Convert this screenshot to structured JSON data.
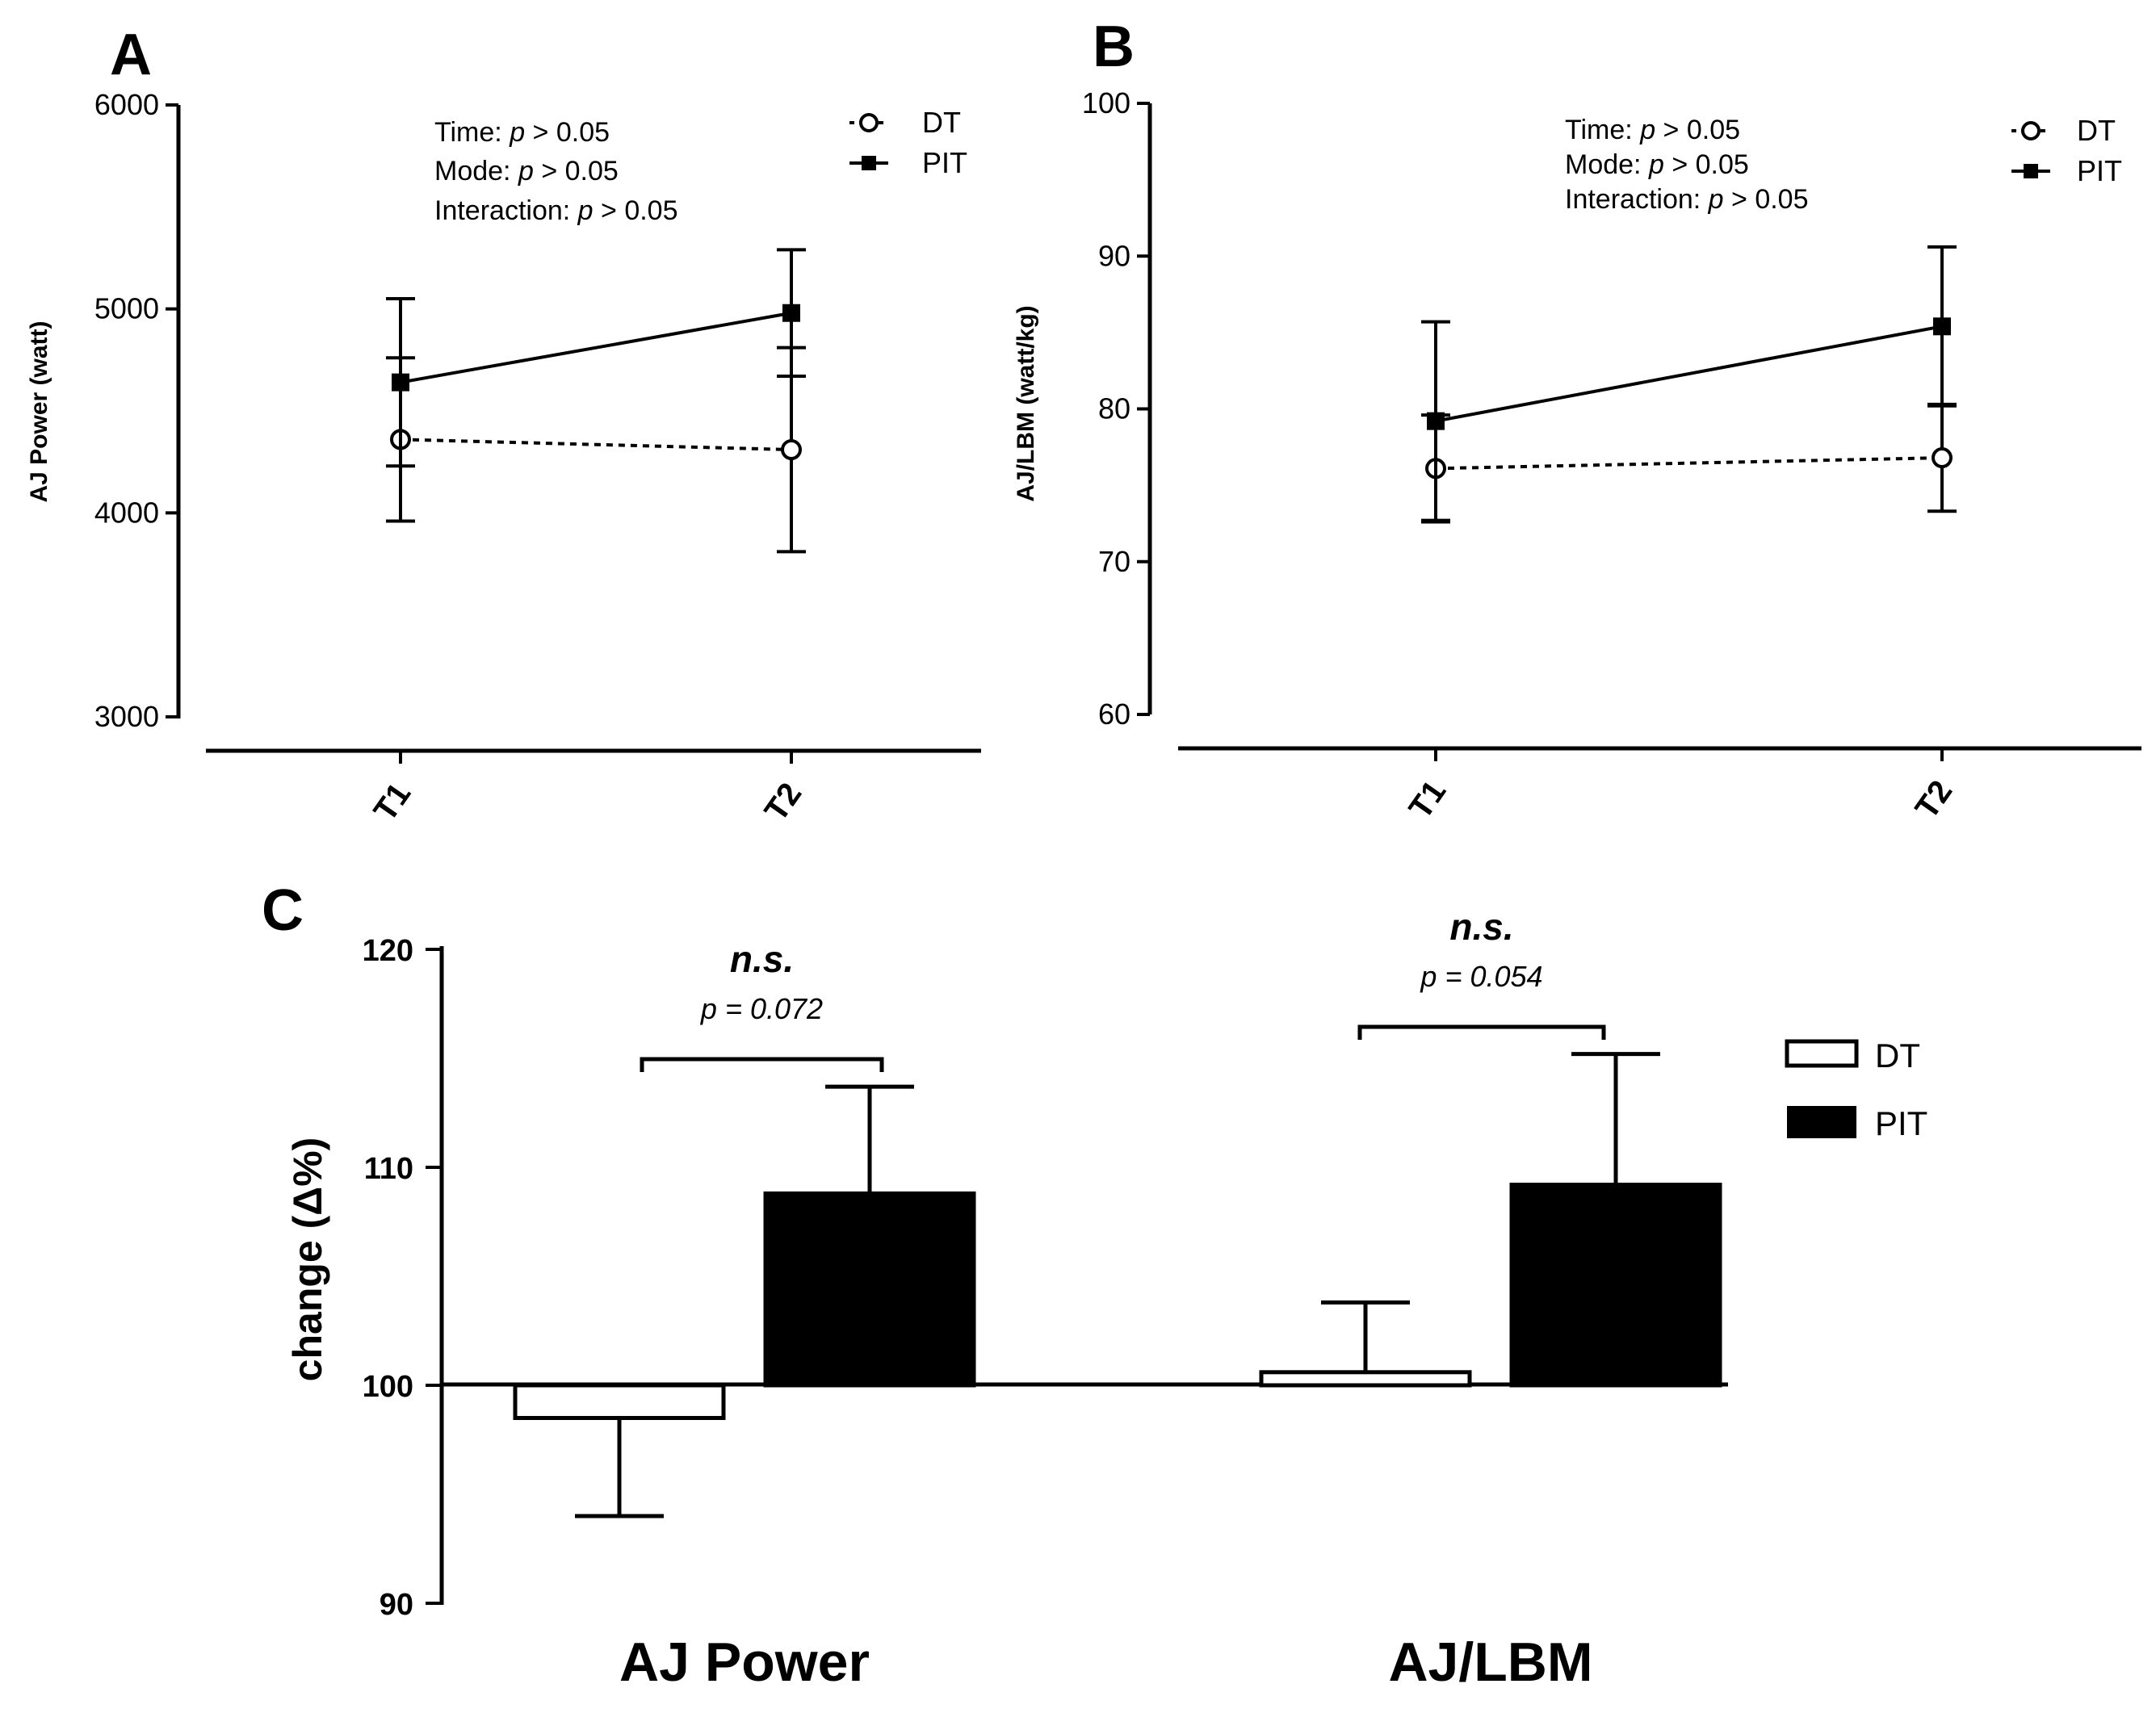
{
  "chart_data": [
    {
      "panel": "A",
      "type": "line",
      "ylabel": "AJ Power (watt)",
      "xlabel": "",
      "categories": [
        "T1",
        "T2"
      ],
      "ylim": [
        3000,
        6000
      ],
      "yticks": [
        3000,
        4000,
        5000,
        6000
      ],
      "series": [
        {
          "name": "DT",
          "marker": "open-circle",
          "line": "dashed",
          "values": [
            4360,
            4310
          ],
          "errors": [
            400,
            500
          ]
        },
        {
          "name": "PIT",
          "marker": "filled-square",
          "line": "solid",
          "values": [
            4640,
            4980
          ],
          "errors": [
            410,
            310
          ]
        }
      ],
      "annotations": [
        {
          "label": "Time: ",
          "p": "p",
          "rest": " > 0.05"
        },
        {
          "label": "Mode: ",
          "p": "p",
          "rest": " > 0.05"
        },
        {
          "label": "Interaction: ",
          "p": "p",
          "rest": " > 0.05"
        }
      ],
      "legend": [
        "DT",
        "PIT"
      ],
      "legend_position": "top-right"
    },
    {
      "panel": "B",
      "type": "line",
      "ylabel": "AJ/LBM (watt/kg)",
      "xlabel": "",
      "categories": [
        "T1",
        "T2"
      ],
      "ylim": [
        60,
        100
      ],
      "yticks": [
        60,
        70,
        80,
        90,
        100
      ],
      "series": [
        {
          "name": "DT",
          "marker": "open-circle",
          "line": "dashed",
          "values": [
            76.1,
            76.8
          ],
          "errors": [
            3.5,
            3.5
          ]
        },
        {
          "name": "PIT",
          "marker": "filled-square",
          "line": "solid",
          "values": [
            79.2,
            85.4
          ],
          "errors": [
            6.5,
            5.2
          ]
        }
      ],
      "annotations": [
        {
          "label": "Time: ",
          "p": "p",
          "rest": " > 0.05"
        },
        {
          "label": "Mode: ",
          "p": "p",
          "rest": " > 0.05"
        },
        {
          "label": "Interaction: ",
          "p": "p",
          "rest": " > 0.05"
        }
      ],
      "legend": [
        "DT",
        "PIT"
      ],
      "legend_position": "top-right"
    },
    {
      "panel": "C",
      "type": "bar",
      "ylabel": "change (Δ%)",
      "xlabel": "",
      "categories": [
        "AJ Power",
        "AJ/LBM"
      ],
      "ylim": [
        90,
        120
      ],
      "yticks": [
        90,
        100,
        110,
        120
      ],
      "baseline": 100,
      "series": [
        {
          "name": "DT",
          "fill": "white",
          "values": [
            98.5,
            100.6
          ],
          "errors": [
            4.5,
            3.2
          ]
        },
        {
          "name": "PIT",
          "fill": "black",
          "values": [
            108.8,
            109.2
          ],
          "errors": [
            4.9,
            6.0
          ]
        }
      ],
      "comparisons": [
        {
          "category": "AJ Power",
          "sig": "n.s.",
          "p": "p = 0.072"
        },
        {
          "category": "AJ/LBM",
          "sig": "n.s.",
          "p": "p = 0.054"
        }
      ],
      "legend": [
        "DT",
        "PIT"
      ],
      "legend_position": "right"
    }
  ]
}
